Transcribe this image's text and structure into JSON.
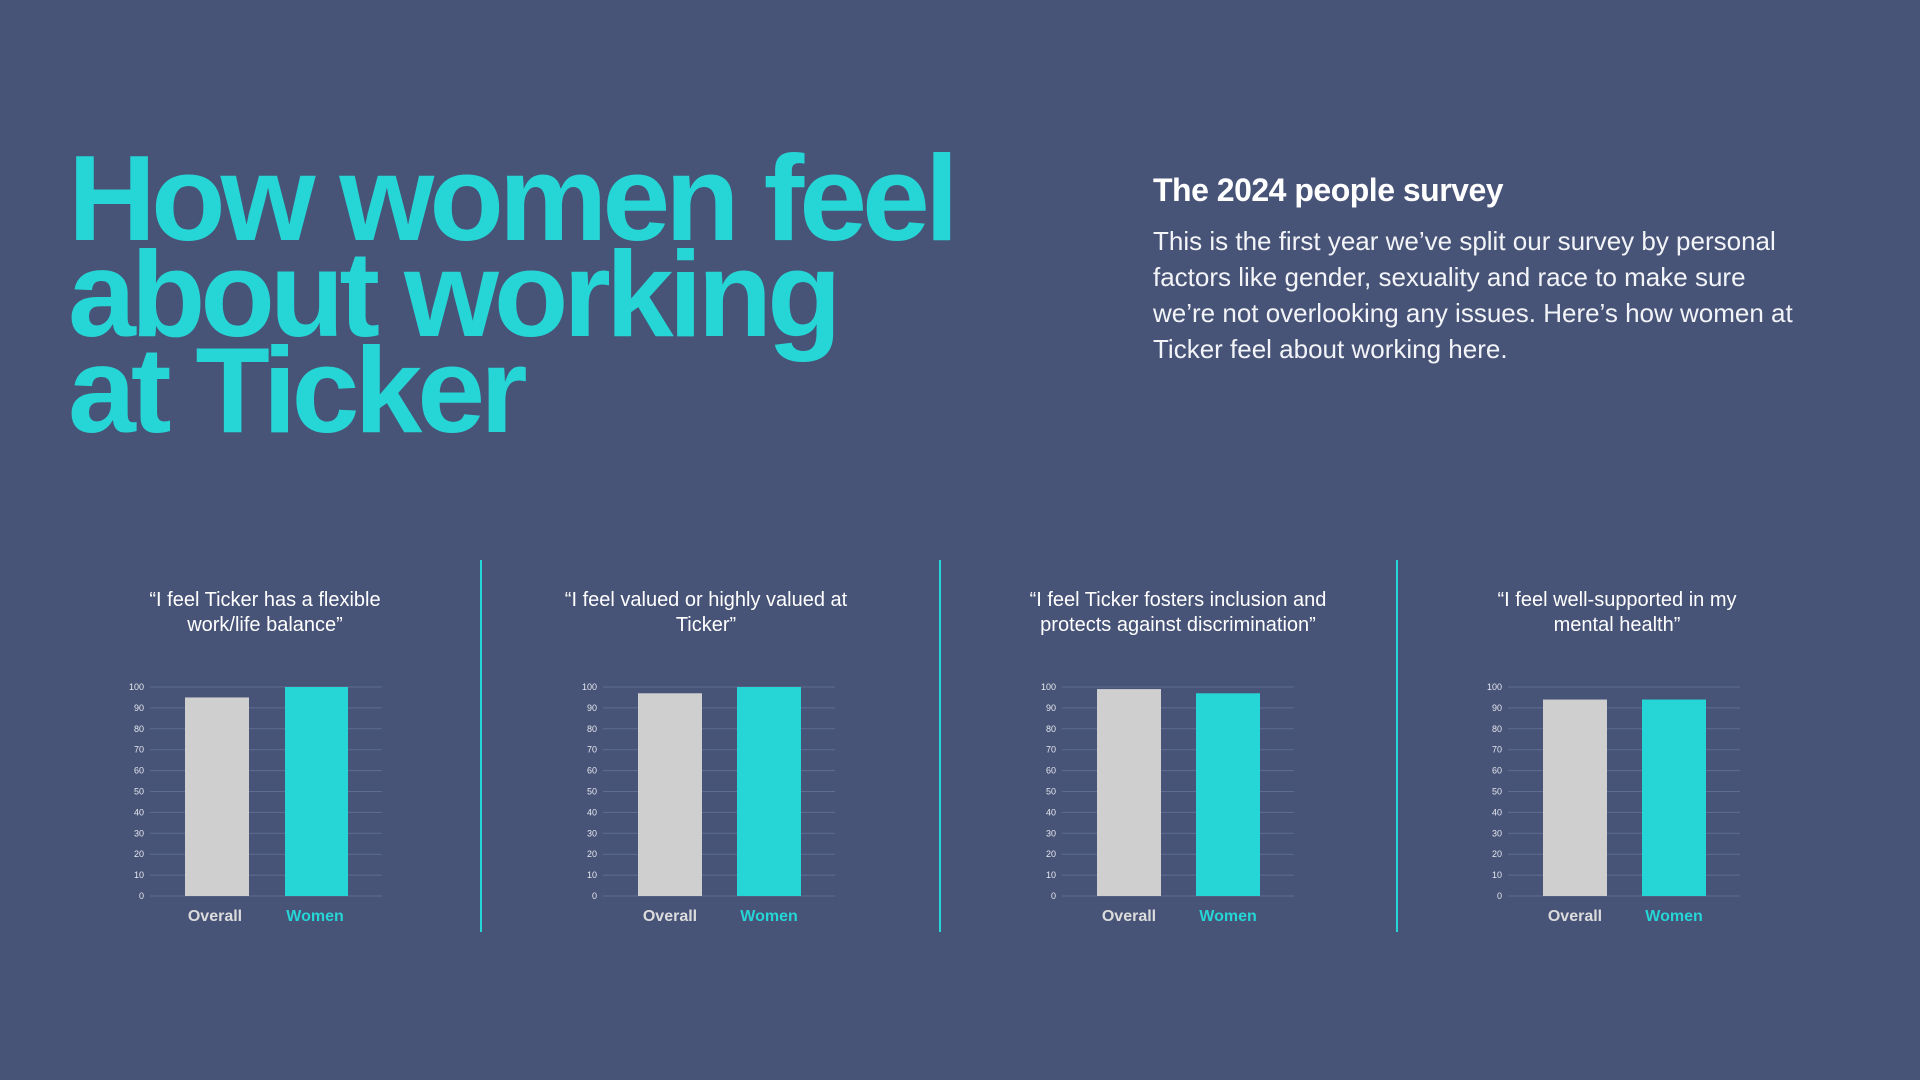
{
  "headline": {
    "lines": [
      "How women feel",
      "about working",
      "at Ticker"
    ]
  },
  "intro": {
    "title": "The 2024 people survey",
    "body": "This is the first year we’ve split our survey by personal factors like gender, sexuality and race to make sure we’re not overlooking any issues. Here’s how women at Ticker feel about working here."
  },
  "colors": {
    "background": "#475377",
    "accent": "#26d5d5",
    "overall_bar": "#cfcfcf",
    "divider": "#26d5d5"
  },
  "chart_data": [
    {
      "type": "bar",
      "title_lines": [
        "“I feel Ticker has a flexible",
        "work/life balance”"
      ],
      "categories": [
        "Overall",
        "Women"
      ],
      "values": [
        95,
        100
      ],
      "ylim": [
        0,
        100
      ],
      "yticks": [
        0,
        10,
        20,
        30,
        40,
        50,
        60,
        70,
        80,
        90,
        100
      ],
      "grid": true
    },
    {
      "type": "bar",
      "title_lines": [
        "“I feel valued or highly valued at",
        "Ticker”"
      ],
      "categories": [
        "Overall",
        "Women"
      ],
      "values": [
        97,
        100
      ],
      "ylim": [
        0,
        100
      ],
      "yticks": [
        0,
        10,
        20,
        30,
        40,
        50,
        60,
        70,
        80,
        90,
        100
      ],
      "grid": true
    },
    {
      "type": "bar",
      "title_lines": [
        "“I feel Ticker fosters inclusion and",
        "protects against discrimination”"
      ],
      "categories": [
        "Overall",
        "Women"
      ],
      "values": [
        99,
        97
      ],
      "ylim": [
        0,
        100
      ],
      "yticks": [
        0,
        10,
        20,
        30,
        40,
        50,
        60,
        70,
        80,
        90,
        100
      ],
      "grid": true
    },
    {
      "type": "bar",
      "title_lines": [
        "“I feel well-supported in my",
        "mental health”"
      ],
      "categories": [
        "Overall",
        "Women"
      ],
      "values": [
        94,
        94
      ],
      "ylim": [
        0,
        100
      ],
      "yticks": [
        0,
        10,
        20,
        30,
        40,
        50,
        60,
        70,
        80,
        90,
        100
      ],
      "grid": true
    }
  ]
}
